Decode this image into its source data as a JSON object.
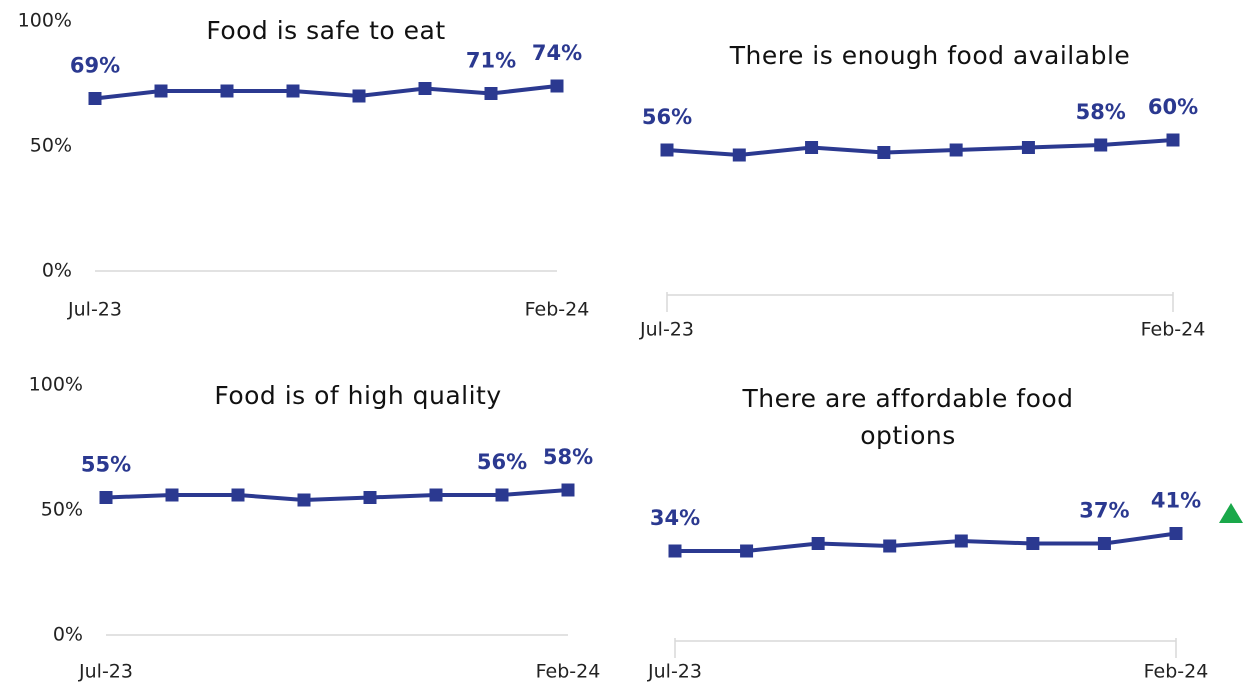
{
  "chart_data": [
    {
      "type": "line",
      "title": "Food is safe to eat",
      "color": "#2b3990",
      "categories": [
        "Jul-23",
        null,
        null,
        null,
        null,
        null,
        null,
        "Feb-24"
      ],
      "values": [
        69,
        72,
        72,
        72,
        70,
        73,
        71,
        74
      ],
      "value_labels": [
        "69%",
        null,
        null,
        null,
        null,
        null,
        "71%",
        "74%"
      ],
      "ylim": [
        0,
        100
      ],
      "yticks": [
        {
          "value": 0,
          "label": "0%"
        },
        {
          "value": 50,
          "label": "50%"
        },
        {
          "value": 100,
          "label": "100%"
        }
      ]
    },
    {
      "type": "line",
      "title": "There is enough food available",
      "color": "#2b3990",
      "categories": [
        "Jul-23",
        null,
        null,
        null,
        null,
        null,
        null,
        "Feb-24"
      ],
      "values": [
        56,
        54,
        57,
        55,
        56,
        57,
        58,
        60
      ],
      "value_labels": [
        "56%",
        null,
        null,
        null,
        null,
        null,
        "58%",
        "60%"
      ],
      "ylim": [
        0,
        100
      ]
    },
    {
      "type": "line",
      "title": "Food is of high quality",
      "color": "#2b3990",
      "categories": [
        "Jul-23",
        null,
        null,
        null,
        null,
        null,
        null,
        "Feb-24"
      ],
      "values": [
        55,
        56,
        56,
        54,
        55,
        56,
        56,
        58
      ],
      "value_labels": [
        "55%",
        null,
        null,
        null,
        null,
        null,
        "56%",
        "58%"
      ],
      "ylim": [
        0,
        100
      ],
      "yticks": [
        {
          "value": 0,
          "label": "0%"
        },
        {
          "value": 50,
          "label": "50%"
        },
        {
          "value": 100,
          "label": "100%"
        }
      ]
    },
    {
      "type": "line",
      "title": "There are affordable food options",
      "color": "#2b3990",
      "categories": [
        "Jul-23",
        null,
        null,
        null,
        null,
        null,
        null,
        "Feb-24"
      ],
      "values": [
        34,
        34,
        37,
        36,
        38,
        37,
        37,
        41
      ],
      "value_labels": [
        "34%",
        null,
        null,
        null,
        null,
        null,
        "37%",
        "41%"
      ],
      "ylim": [
        0,
        100
      ]
    }
  ]
}
